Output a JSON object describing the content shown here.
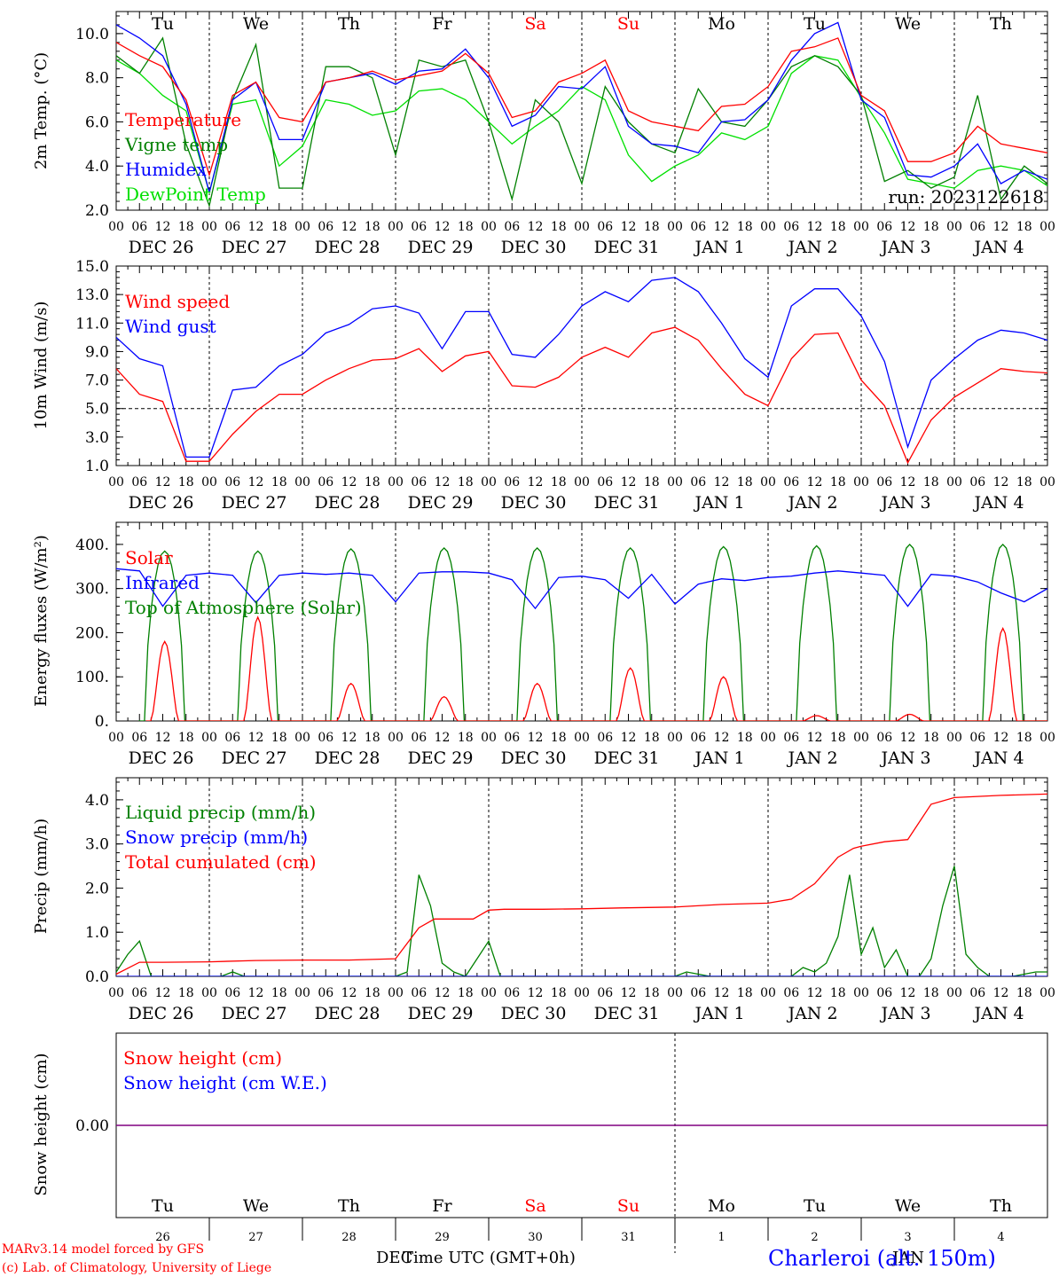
{
  "days": [
    "Tu",
    "We",
    "Th",
    "Fr",
    "Sa",
    "Su",
    "Mo",
    "Tu",
    "We",
    "Th"
  ],
  "weekend_days": [
    4,
    5
  ],
  "date_labels": [
    "DEC 26",
    "DEC 27",
    "DEC 28",
    "DEC 29",
    "DEC 30",
    "DEC 31",
    "JAN  1",
    "JAN  2",
    "JAN  3",
    "JAN  4"
  ],
  "hour_ticks": [
    "00",
    "06",
    "12",
    "18"
  ],
  "hour_end": "00",
  "bottom_day_numbers": [
    "26",
    "27",
    "28",
    "29",
    "30",
    "31",
    "1",
    "2",
    "3",
    "4"
  ],
  "bottom_month_left": "DEC",
  "bottom_month_right": "JAN",
  "footer": {
    "xlabel": "Time UTC (GMT+0h)",
    "credit1": "MARv3.14 model forced by GFS",
    "credit2": "(c) Lab. of Climatology, University of Liege",
    "station": "Charleroi (alt. 150m)"
  },
  "colors": {
    "red": "#ff0000",
    "green": "#008000",
    "blue": "#0000ff",
    "lime": "#00e000",
    "purple": "#800080"
  },
  "chart_data": [
    {
      "type": "line",
      "ylabel": "2m Temp. (°C)",
      "ylim": [
        2,
        11
      ],
      "yticks": [
        2.0,
        4.0,
        6.0,
        8.0,
        10.0
      ],
      "annotation": "run: 2023122618",
      "x_hours": [
        0,
        6,
        12,
        18,
        24,
        30,
        36,
        42,
        48,
        54,
        60,
        66,
        72,
        78,
        84,
        90,
        96,
        102,
        108,
        114,
        120,
        126,
        132,
        138,
        144,
        150,
        156,
        162,
        168,
        174,
        180,
        186,
        192,
        198,
        204,
        210,
        216,
        222,
        228,
        234,
        240
      ],
      "series": [
        {
          "name": "Temperature",
          "color": "red",
          "values": [
            9.6,
            9.0,
            8.5,
            7.0,
            3.6,
            7.2,
            7.8,
            6.2,
            6.0,
            7.8,
            8.0,
            8.3,
            7.9,
            8.1,
            8.3,
            9.1,
            8.2,
            6.2,
            6.5,
            7.8,
            8.2,
            8.8,
            6.5,
            6.0,
            5.8,
            5.6,
            6.7,
            6.8,
            7.6,
            9.2,
            9.4,
            9.8,
            7.2,
            6.5,
            4.2,
            4.2,
            4.6,
            5.8,
            5.0,
            4.8,
            4.6
          ]
        },
        {
          "name": "Vigne temp",
          "color": "green",
          "values": [
            9.0,
            8.2,
            9.8,
            5.0,
            2.2,
            7.0,
            9.5,
            3.0,
            3.0,
            8.5,
            8.5,
            8.0,
            4.5,
            8.8,
            8.5,
            8.8,
            6.0,
            2.5,
            7.0,
            6.0,
            3.2,
            7.6,
            6.0,
            5.0,
            4.6,
            7.5,
            6.0,
            5.8,
            7.0,
            8.5,
            9.0,
            8.5,
            7.2,
            3.3,
            3.8,
            3.0,
            3.5,
            7.2,
            2.5,
            4.0,
            3.2
          ]
        },
        {
          "name": "Humidex",
          "color": "blue",
          "values": [
            10.4,
            9.8,
            9.0,
            6.8,
            2.8,
            7.0,
            7.8,
            5.2,
            5.2,
            7.8,
            8.0,
            8.2,
            7.7,
            8.3,
            8.4,
            9.3,
            8.0,
            5.8,
            6.3,
            7.6,
            7.5,
            8.5,
            5.8,
            5.0,
            4.9,
            4.6,
            6.0,
            6.1,
            7.0,
            8.8,
            10.0,
            10.5,
            7.0,
            6.2,
            3.6,
            3.5,
            4.0,
            5.0,
            3.2,
            3.8,
            3.4
          ]
        },
        {
          "name": "DewPoint Temp",
          "color": "lime",
          "values": [
            8.8,
            8.2,
            7.2,
            6.5,
            2.8,
            6.8,
            7.0,
            4.0,
            4.9,
            7.0,
            6.8,
            6.3,
            6.5,
            7.4,
            7.5,
            7.0,
            6.0,
            5.0,
            5.8,
            6.5,
            7.6,
            7.0,
            4.5,
            3.3,
            4.0,
            4.5,
            5.5,
            5.2,
            5.8,
            8.2,
            9.0,
            8.8,
            7.1,
            5.5,
            3.4,
            3.2,
            3.0,
            3.8,
            4.0,
            3.8,
            3.1
          ]
        }
      ],
      "legend_placement": "top-left"
    },
    {
      "type": "line",
      "ylabel": "10m Wind (m/s)",
      "ylim": [
        1,
        15
      ],
      "yticks": [
        1.0,
        3.0,
        5.0,
        7.0,
        9.0,
        11.0,
        13.0,
        15.0
      ],
      "reference_line": 5.0,
      "x_hours": [
        0,
        6,
        12,
        18,
        24,
        30,
        36,
        42,
        48,
        54,
        60,
        66,
        72,
        78,
        84,
        90,
        96,
        102,
        108,
        114,
        120,
        126,
        132,
        138,
        144,
        150,
        156,
        162,
        168,
        174,
        180,
        186,
        192,
        198,
        204,
        210,
        216,
        222,
        228,
        234,
        240
      ],
      "series": [
        {
          "name": "Wind speed",
          "color": "red",
          "values": [
            7.8,
            6.0,
            5.5,
            1.3,
            1.3,
            3.2,
            4.8,
            6.0,
            6.0,
            7.0,
            7.8,
            8.4,
            8.5,
            9.2,
            7.6,
            8.7,
            9.0,
            6.6,
            6.5,
            7.2,
            8.6,
            9.3,
            8.6,
            10.3,
            10.7,
            9.8,
            7.8,
            6.0,
            5.2,
            8.5,
            10.2,
            10.3,
            7.0,
            5.2,
            1.2,
            4.2,
            5.8,
            6.8,
            7.8,
            7.6,
            7.5
          ]
        },
        {
          "name": "Wind gust",
          "color": "blue",
          "values": [
            10.0,
            8.5,
            8.0,
            1.6,
            1.6,
            6.3,
            6.5,
            8.0,
            8.8,
            10.3,
            10.9,
            12.0,
            12.2,
            11.7,
            9.2,
            11.8,
            11.8,
            8.8,
            8.6,
            10.2,
            12.2,
            13.2,
            12.5,
            14.0,
            14.2,
            13.2,
            11.0,
            8.5,
            7.2,
            12.2,
            13.4,
            13.4,
            11.5,
            8.3,
            2.3,
            7.0,
            8.5,
            9.8,
            10.5,
            10.3,
            9.8
          ]
        }
      ],
      "legend_placement": "top-left"
    },
    {
      "type": "line",
      "ylabel": "Energy fluxes (W/m²)",
      "ylim": [
        0,
        450
      ],
      "yticks": [
        0,
        100,
        200,
        300,
        400
      ],
      "ytick_labels": [
        "0.",
        "100.",
        "200.",
        "300.",
        "400."
      ],
      "series": [
        {
          "name": "Solar",
          "color": "red",
          "peaks": [
            180,
            235,
            85,
            55,
            85,
            120,
            100,
            12,
            15,
            210
          ]
        },
        {
          "name": "Infrared",
          "color": "blue",
          "x_hours": [
            0,
            6,
            12,
            18,
            24,
            30,
            36,
            42,
            48,
            54,
            60,
            66,
            72,
            78,
            84,
            90,
            96,
            102,
            108,
            114,
            120,
            126,
            132,
            138,
            144,
            150,
            156,
            162,
            168,
            174,
            180,
            186,
            192,
            198,
            204,
            210,
            216,
            222,
            228,
            234,
            240
          ],
          "values": [
            345,
            340,
            260,
            330,
            335,
            330,
            268,
            330,
            335,
            332,
            335,
            330,
            270,
            335,
            338,
            338,
            335,
            320,
            255,
            325,
            328,
            320,
            278,
            332,
            265,
            310,
            322,
            318,
            325,
            328,
            335,
            340,
            335,
            330,
            260,
            332,
            328,
            315,
            290,
            270,
            300
          ]
        },
        {
          "name": "Top of Atmosphere (Solar)",
          "color": "green",
          "peaks": [
            385,
            385,
            390,
            392,
            392,
            392,
            395,
            397,
            400,
            400
          ]
        }
      ],
      "legend_placement": "top-left"
    },
    {
      "type": "line",
      "ylabel": "Precip (mm/h)",
      "ylim": [
        0,
        4.5
      ],
      "yticks": [
        0.0,
        1.0,
        2.0,
        3.0,
        4.0
      ],
      "series": [
        {
          "name": "Liquid precip (mm/h)",
          "color": "green",
          "x_hours": [
            0,
            3,
            6,
            9,
            12,
            15,
            18,
            21,
            24,
            27,
            30,
            33,
            36,
            39,
            42,
            45,
            48,
            51,
            54,
            57,
            60,
            63,
            66,
            69,
            72,
            75,
            78,
            81,
            84,
            87,
            90,
            93,
            96,
            99,
            102,
            105,
            108,
            111,
            114,
            117,
            120,
            123,
            126,
            129,
            132,
            135,
            138,
            141,
            144,
            147,
            150,
            153,
            156,
            159,
            162,
            165,
            168,
            171,
            174,
            177,
            180,
            183,
            186,
            189,
            192,
            195,
            198,
            201,
            204,
            207,
            210,
            213,
            216,
            219,
            222,
            225,
            228,
            231,
            234,
            237,
            240
          ],
          "values": [
            0.1,
            0.5,
            0.8,
            0,
            0,
            0,
            0,
            0,
            0,
            0,
            0.1,
            0,
            0,
            0,
            0,
            0,
            0,
            0,
            0,
            0,
            0,
            0,
            0,
            0,
            0,
            0.1,
            2.3,
            1.6,
            0.3,
            0.1,
            0,
            0.4,
            0.8,
            0,
            0,
            0,
            0,
            0,
            0,
            0,
            0,
            0,
            0,
            0,
            0,
            0,
            0,
            0,
            0,
            0.1,
            0.05,
            0,
            0,
            0,
            0,
            0,
            0,
            0,
            0,
            0.2,
            0.1,
            0.3,
            0.9,
            2.3,
            0.5,
            1.1,
            0.2,
            0.6,
            0,
            0,
            0.4,
            1.6,
            2.5,
            0.5,
            0.2,
            0,
            0,
            0,
            0.05,
            0.1,
            0.1
          ]
        },
        {
          "name": "Snow precip (mm/h)",
          "color": "blue",
          "x_hours": [
            0,
            240
          ],
          "values": [
            0,
            0
          ]
        },
        {
          "name": "Total cumulated (cm)",
          "color": "red",
          "x_hours": [
            0,
            6,
            12,
            24,
            36,
            48,
            60,
            72,
            78,
            82,
            86,
            92,
            96,
            100,
            110,
            120,
            130,
            144,
            156,
            168,
            174,
            180,
            186,
            190,
            192,
            198,
            204,
            210,
            216,
            228,
            240
          ],
          "values": [
            0.05,
            0.32,
            0.32,
            0.33,
            0.36,
            0.37,
            0.37,
            0.4,
            1.1,
            1.3,
            1.3,
            1.3,
            1.5,
            1.52,
            1.52,
            1.53,
            1.55,
            1.57,
            1.63,
            1.66,
            1.75,
            2.1,
            2.7,
            2.9,
            2.95,
            3.05,
            3.1,
            3.9,
            4.05,
            4.1,
            4.13
          ]
        }
      ],
      "legend_placement": "top-left"
    },
    {
      "type": "line",
      "ylabel": "Snow height (cm)",
      "yticks": [
        0.0
      ],
      "ytick_labels": [
        "0.00"
      ],
      "series": [
        {
          "name": "Snow height (cm)",
          "color": "red",
          "values": [
            0,
            0
          ]
        },
        {
          "name": "Snow height (cm W.E.)",
          "color": "blue",
          "values": [
            0,
            0
          ]
        }
      ],
      "legend_placement": "top-left"
    }
  ]
}
